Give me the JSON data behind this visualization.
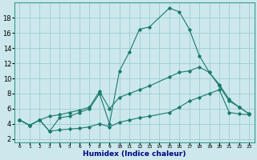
{
  "xlabel": "Humidex (Indice chaleur)",
  "bg_color": "#cce8ec",
  "grid_color": "#9ecdd4",
  "line_color": "#1a7a6e",
  "ylim": [
    1.5,
    20
  ],
  "xlim": [
    -0.5,
    23.5
  ],
  "series1_x": [
    0,
    1,
    2,
    3,
    4,
    5,
    6,
    7,
    8,
    9,
    10,
    11,
    12,
    13,
    15,
    16,
    17,
    18,
    19,
    20,
    21,
    22,
    23
  ],
  "series1_y": [
    4.5,
    3.8,
    4.5,
    3.0,
    3.2,
    3.3,
    3.4,
    3.6,
    4.0,
    3.6,
    4.2,
    4.5,
    4.8,
    5.0,
    5.5,
    6.2,
    7.0,
    7.5,
    8.0,
    8.5,
    5.5,
    5.3,
    5.2
  ],
  "series2_x": [
    0,
    1,
    2,
    3,
    4,
    5,
    6,
    7,
    8,
    9,
    10,
    11,
    12,
    13,
    15,
    16,
    17,
    18,
    19,
    20,
    21,
    22,
    23
  ],
  "series2_y": [
    4.5,
    3.8,
    4.5,
    5.0,
    5.2,
    5.5,
    5.8,
    6.2,
    8.3,
    6.0,
    7.5,
    8.0,
    8.5,
    9.0,
    10.2,
    10.8,
    11.0,
    11.5,
    10.8,
    9.2,
    7.2,
    6.2,
    5.3
  ],
  "series3_x": [
    0,
    1,
    2,
    3,
    4,
    5,
    6,
    7,
    8,
    9,
    10,
    11,
    12,
    13,
    15,
    16,
    17,
    18,
    19,
    20,
    21,
    22,
    23
  ],
  "series3_y": [
    4.5,
    3.8,
    4.5,
    3.0,
    4.8,
    5.0,
    5.5,
    6.0,
    8.0,
    4.0,
    11.0,
    13.5,
    16.5,
    16.8,
    19.3,
    18.8,
    16.5,
    13.0,
    10.8,
    9.0,
    7.0,
    6.2,
    5.3
  ],
  "yticks": [
    2,
    4,
    6,
    8,
    10,
    12,
    14,
    16,
    18
  ],
  "ytick_labels": [
    "2",
    "4",
    "6",
    "8",
    "10",
    "12",
    "14",
    "16",
    "18"
  ]
}
